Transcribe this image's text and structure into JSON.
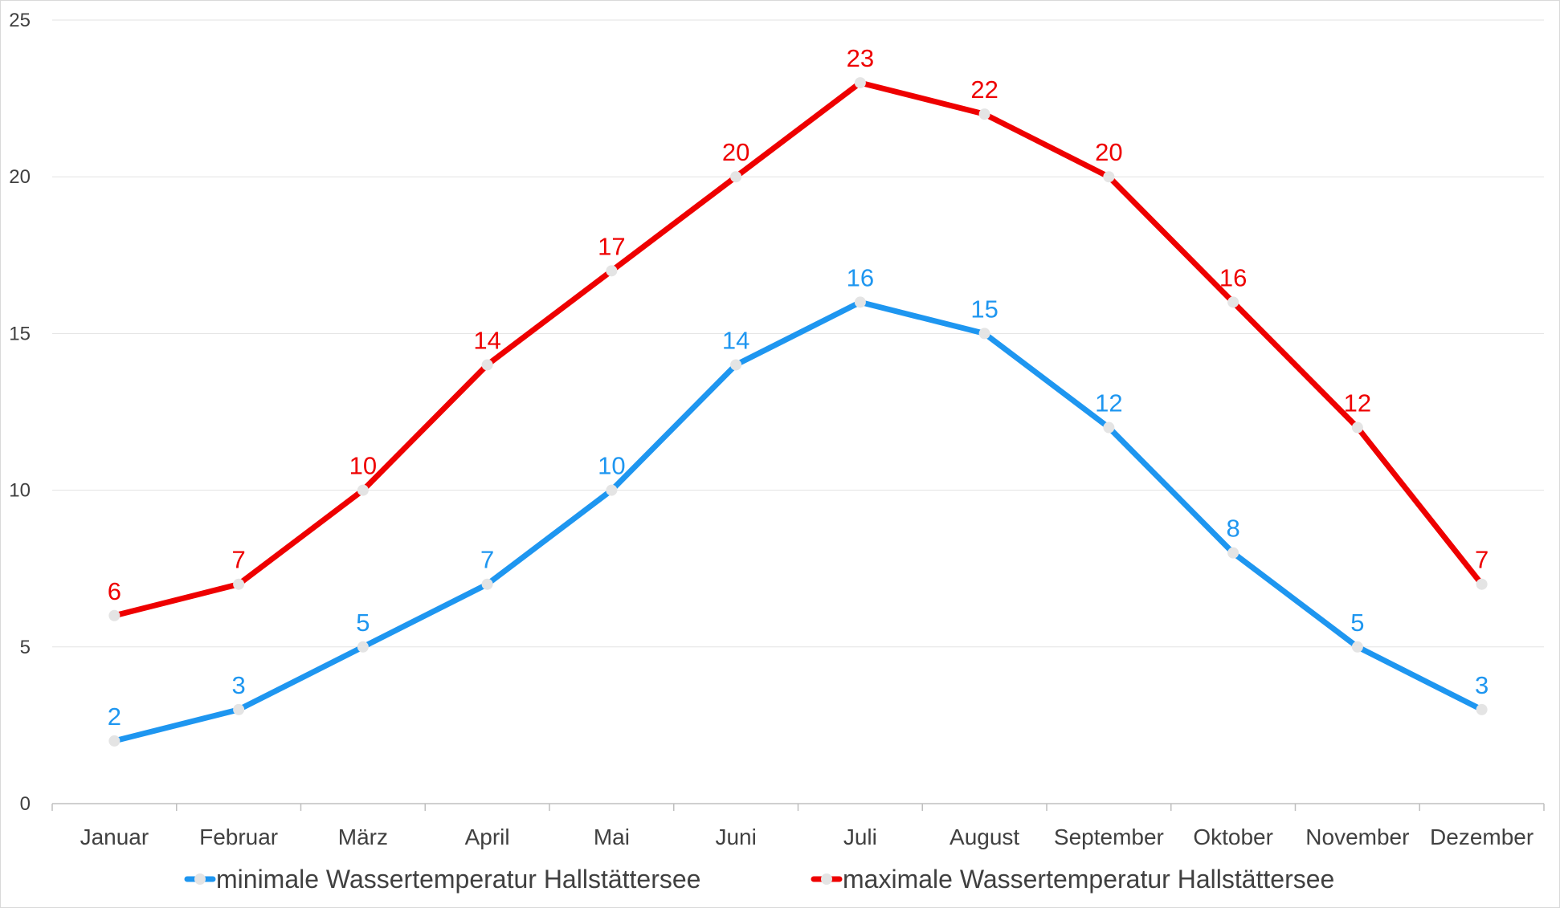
{
  "chart_data": {
    "type": "line",
    "title": "",
    "xlabel": "",
    "ylabel": "",
    "categories": [
      "Januar",
      "Februar",
      "März",
      "April",
      "Mai",
      "Juni",
      "Juli",
      "August",
      "September",
      "Oktober",
      "November",
      "Dezember"
    ],
    "y_ticks": [
      "0",
      "5",
      "10",
      "15",
      "20",
      "25"
    ],
    "ylim": [
      0,
      25
    ],
    "grid": true,
    "legend_position": "bottom",
    "series": [
      {
        "name": "minimale Wassertemperatur Hallstättersee",
        "color": "#1e96f0",
        "values": [
          2,
          3,
          5,
          7,
          10,
          14,
          16,
          15,
          12,
          8,
          5,
          3
        ],
        "labels": [
          "2",
          "3",
          "5",
          "7",
          "10",
          "14",
          "16",
          "15",
          "12",
          "8",
          "5",
          "3"
        ]
      },
      {
        "name": "maximale Wassertemperatur Hallstättersee",
        "color": "#ee0000",
        "values": [
          6,
          7,
          10,
          14,
          17,
          20,
          23,
          22,
          20,
          16,
          12,
          7
        ],
        "labels": [
          "6",
          "7",
          "10",
          "14",
          "17",
          "20",
          "23",
          "22",
          "20",
          "16",
          "12",
          "7"
        ]
      }
    ]
  }
}
